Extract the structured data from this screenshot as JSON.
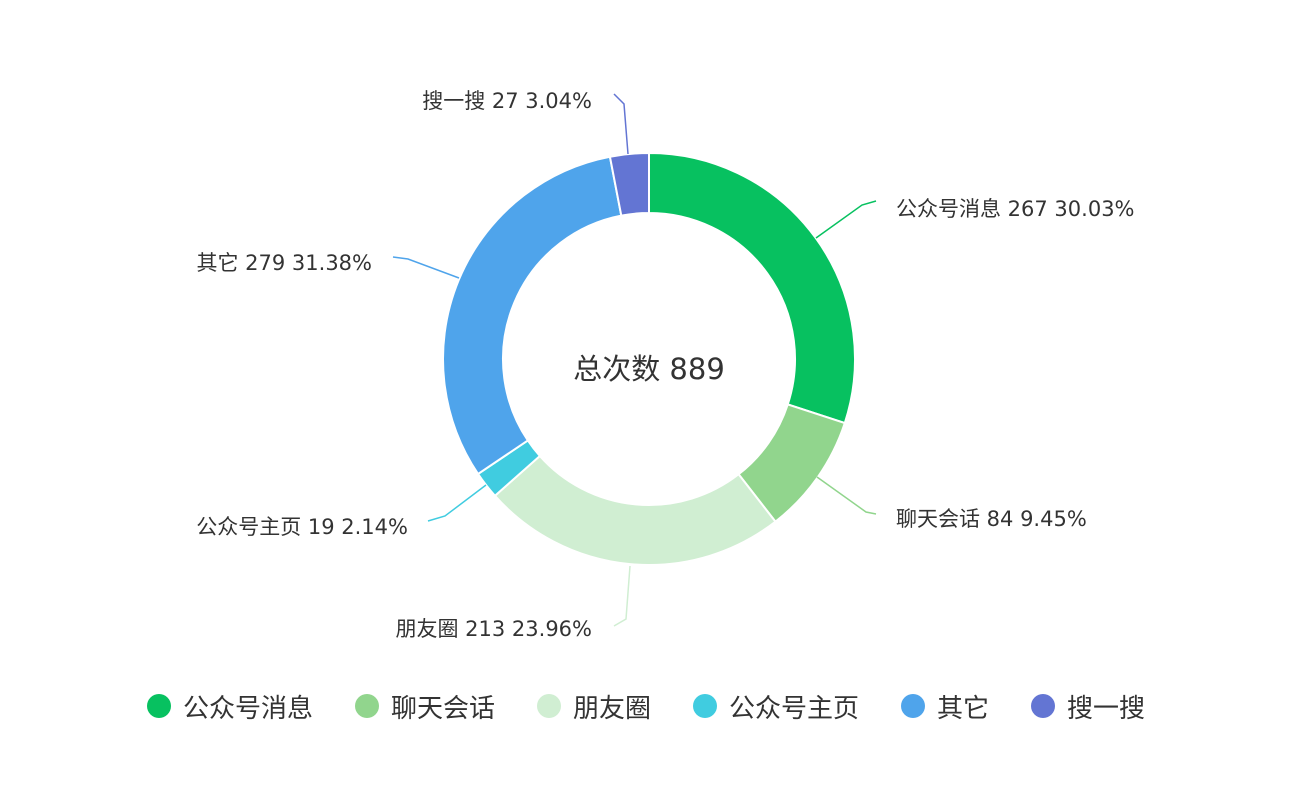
{
  "chart_data": {
    "type": "pie",
    "donut": true,
    "center_label": "总次数 889",
    "total": 889,
    "slices": [
      {
        "name": "公众号消息",
        "value": 267,
        "percent": "30.03%",
        "color": "#07C160"
      },
      {
        "name": "聊天会话",
        "value": 84,
        "percent": "9.45%",
        "color": "#91D58D"
      },
      {
        "name": "朋友圈",
        "value": 213,
        "percent": "23.96%",
        "color": "#D0EED2"
      },
      {
        "name": "公众号主页",
        "value": 19,
        "percent": "2.14%",
        "color": "#40CCE0"
      },
      {
        "name": "其它",
        "value": 279,
        "percent": "31.38%",
        "color": "#4FA4EB"
      },
      {
        "name": "搜一搜",
        "value": 27,
        "percent": "3.04%",
        "color": "#6375D3"
      }
    ],
    "legend_position": "bottom"
  }
}
